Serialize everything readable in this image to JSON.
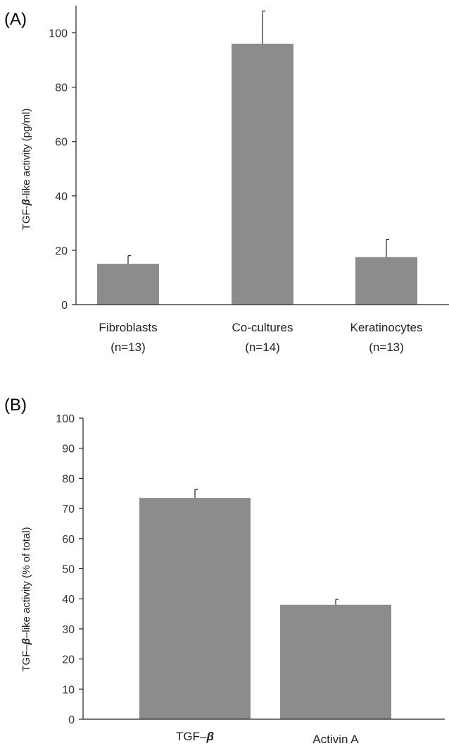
{
  "chart_data": [
    {
      "panel_label": "(A)",
      "type": "bar",
      "categories": [
        "Fibroblasts",
        "Co-cultures",
        "Keratinocytes"
      ],
      "category_sublabels": [
        "(n=13)",
        "(n=14)",
        "(n=13)"
      ],
      "values": [
        15,
        96,
        17.5
      ],
      "error_upper": [
        3,
        12,
        6.5
      ],
      "ylim": [
        0,
        110
      ],
      "yticks": [
        0,
        20,
        40,
        60,
        80,
        100
      ],
      "ylabel_parts": [
        "TGF-",
        "β",
        "-like activity (pg/ml)"
      ],
      "bar_color": "#8c8c8c"
    },
    {
      "panel_label": "(B)",
      "type": "bar",
      "categories_parts": [
        [
          "TGF–",
          "β"
        ],
        [
          "Activin A"
        ]
      ],
      "values": [
        73.5,
        38
      ],
      "error_upper": [
        2.8,
        1.8
      ],
      "ylim": [
        0,
        100
      ],
      "yticks": [
        0,
        10,
        20,
        30,
        40,
        50,
        60,
        70,
        80,
        90,
        100
      ],
      "ylabel_parts": [
        "TGF–",
        "β",
        "–like activity (% of total)"
      ],
      "bar_color": "#8c8c8c"
    }
  ]
}
